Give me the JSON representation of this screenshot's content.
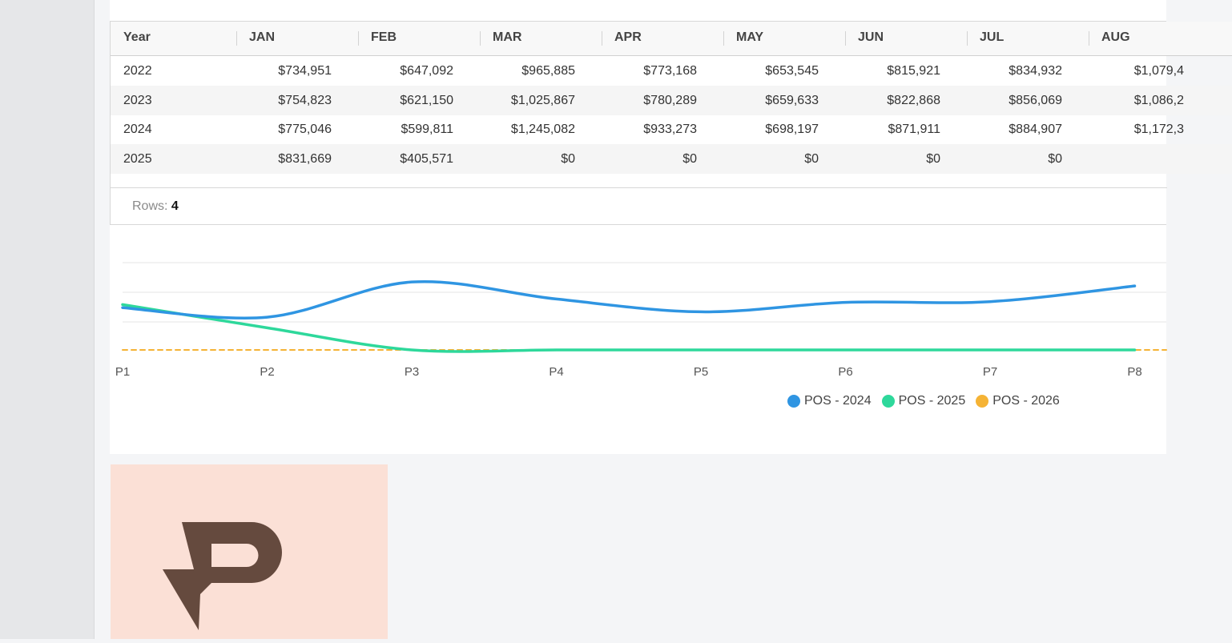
{
  "table": {
    "columns": [
      "Year",
      "JAN",
      "FEB",
      "MAR",
      "APR",
      "MAY",
      "JUN",
      "JUL",
      "AUG"
    ],
    "rows": [
      {
        "year": "2022",
        "values": [
          "$734,951",
          "$647,092",
          "$965,885",
          "$773,168",
          "$653,545",
          "$815,921",
          "$834,932",
          "$1,079,4"
        ]
      },
      {
        "year": "2023",
        "values": [
          "$754,823",
          "$621,150",
          "$1,025,867",
          "$780,289",
          "$659,633",
          "$822,868",
          "$856,069",
          "$1,086,2"
        ]
      },
      {
        "year": "2024",
        "values": [
          "$775,046",
          "$599,811",
          "$1,245,082",
          "$933,273",
          "$698,197",
          "$871,911",
          "$884,907",
          "$1,172,3"
        ]
      },
      {
        "year": "2025",
        "values": [
          "$831,669",
          "$405,571",
          "$0",
          "$0",
          "$0",
          "$0",
          "$0",
          ""
        ]
      }
    ],
    "footer": {
      "rows_label": "Rows:",
      "rows_count": "4"
    }
  },
  "chart_data": {
    "type": "line",
    "categories": [
      "P1",
      "P2",
      "P3",
      "P4",
      "P5",
      "P6",
      "P7",
      "P8"
    ],
    "series": [
      {
        "name": "POS - 2024",
        "color": "#2f95e2",
        "values": [
          775046,
          599811,
          1245082,
          933273,
          698197,
          871911,
          884907,
          1172300
        ]
      },
      {
        "name": "POS - 2025",
        "color": "#2ed89b",
        "values": [
          831669,
          405571,
          0,
          0,
          0,
          0,
          0,
          0
        ]
      },
      {
        "name": "POS - 2026",
        "color": "#f5b335",
        "values": [
          0,
          0,
          0,
          0,
          0,
          0,
          0,
          0
        ]
      }
    ],
    "ylim": [
      0,
      1600000
    ],
    "grid": true,
    "legend": "bottom-center"
  },
  "colors": {
    "brand_tile_bg": "#fbe0d6",
    "brand_mark": "#654a3e"
  }
}
